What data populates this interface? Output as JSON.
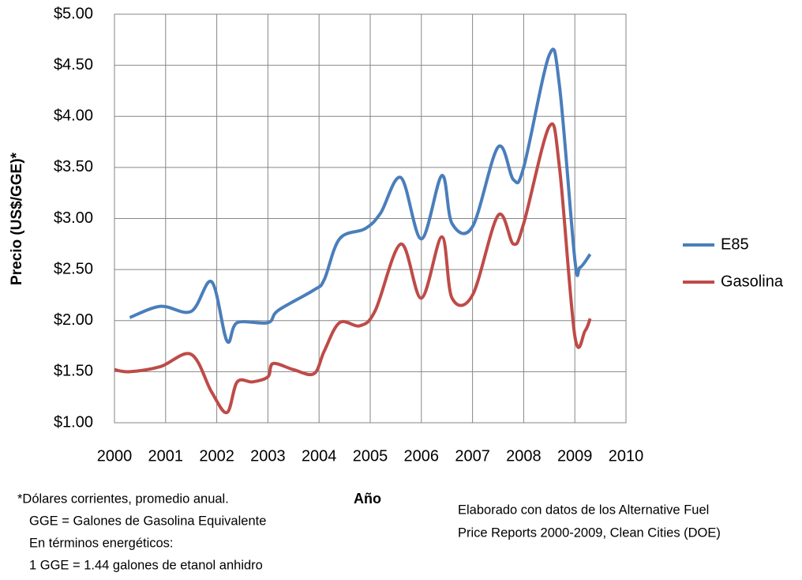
{
  "chart_data": {
    "type": "line",
    "y_label": "Precio (US$/GGE)*",
    "x_label": "Año",
    "notes": [
      "*Dólares corrientes, promedio anual.",
      "GGE = Galones de Gasolina Equivalente",
      "En términos energéticos:",
      "1 GGE = 1.44 galones de etanol anhidro"
    ],
    "source": [
      "Elaborado con  datos de los Alternative Fuel",
      "Price Reports  2000-2009, Clean Cities (DOE)"
    ],
    "xlim": [
      2000,
      2010
    ],
    "xticks": [
      2000,
      2001,
      2002,
      2003,
      2004,
      2005,
      2006,
      2007,
      2008,
      2009,
      2010
    ],
    "ylim": [
      1,
      5
    ],
    "yticks": [
      {
        "value": 1,
        "label": "$1.00"
      },
      {
        "value": 1.5,
        "label": "$1.50"
      },
      {
        "value": 2,
        "label": "$2.00"
      },
      {
        "value": 2.5,
        "label": "$2.50"
      },
      {
        "value": 3,
        "label": "$3.00"
      },
      {
        "value": 3.5,
        "label": "$3.50"
      },
      {
        "value": 4,
        "label": "$4.00"
      },
      {
        "value": 4.5,
        "label": "$4.50"
      },
      {
        "value": 5,
        "label": "$5.00"
      }
    ],
    "grid": true,
    "legend": "right",
    "series": [
      {
        "name": "E85",
        "color": "#4a7ebb",
        "x": [
          2000.3,
          2000.9,
          2001.5,
          2001.9,
          2002.2,
          2002.4,
          2003.0,
          2003.2,
          2003.9,
          2004.1,
          2004.4,
          2004.9,
          2005.2,
          2005.6,
          2006.0,
          2006.4,
          2006.6,
          2007.0,
          2007.5,
          2007.8,
          2008.0,
          2008.5,
          2008.7,
          2009.0,
          2009.1,
          2009.3
        ],
        "values": [
          2.03,
          2.14,
          2.09,
          2.38,
          1.8,
          1.98,
          1.98,
          2.1,
          2.3,
          2.4,
          2.8,
          2.9,
          3.05,
          3.4,
          2.8,
          3.42,
          2.95,
          2.92,
          3.7,
          3.38,
          3.5,
          4.6,
          4.3,
          2.6,
          2.52,
          2.65
        ]
      },
      {
        "name": "Gasolina",
        "color": "#be4b48",
        "x": [
          2000.0,
          2000.3,
          2000.9,
          2001.5,
          2001.9,
          2002.2,
          2002.4,
          2002.7,
          2003.0,
          2003.1,
          2003.5,
          2003.9,
          2004.1,
          2004.4,
          2004.8,
          2005.1,
          2005.6,
          2006.0,
          2006.4,
          2006.6,
          2007.0,
          2007.5,
          2007.8,
          2008.0,
          2008.5,
          2008.7,
          2009.0,
          2009.2,
          2009.3
        ],
        "values": [
          1.52,
          1.5,
          1.55,
          1.67,
          1.3,
          1.1,
          1.4,
          1.4,
          1.45,
          1.58,
          1.52,
          1.48,
          1.7,
          1.98,
          1.95,
          2.1,
          2.75,
          2.22,
          2.82,
          2.22,
          2.25,
          3.03,
          2.75,
          2.95,
          3.9,
          3.5,
          1.85,
          1.9,
          2.02
        ]
      }
    ]
  }
}
